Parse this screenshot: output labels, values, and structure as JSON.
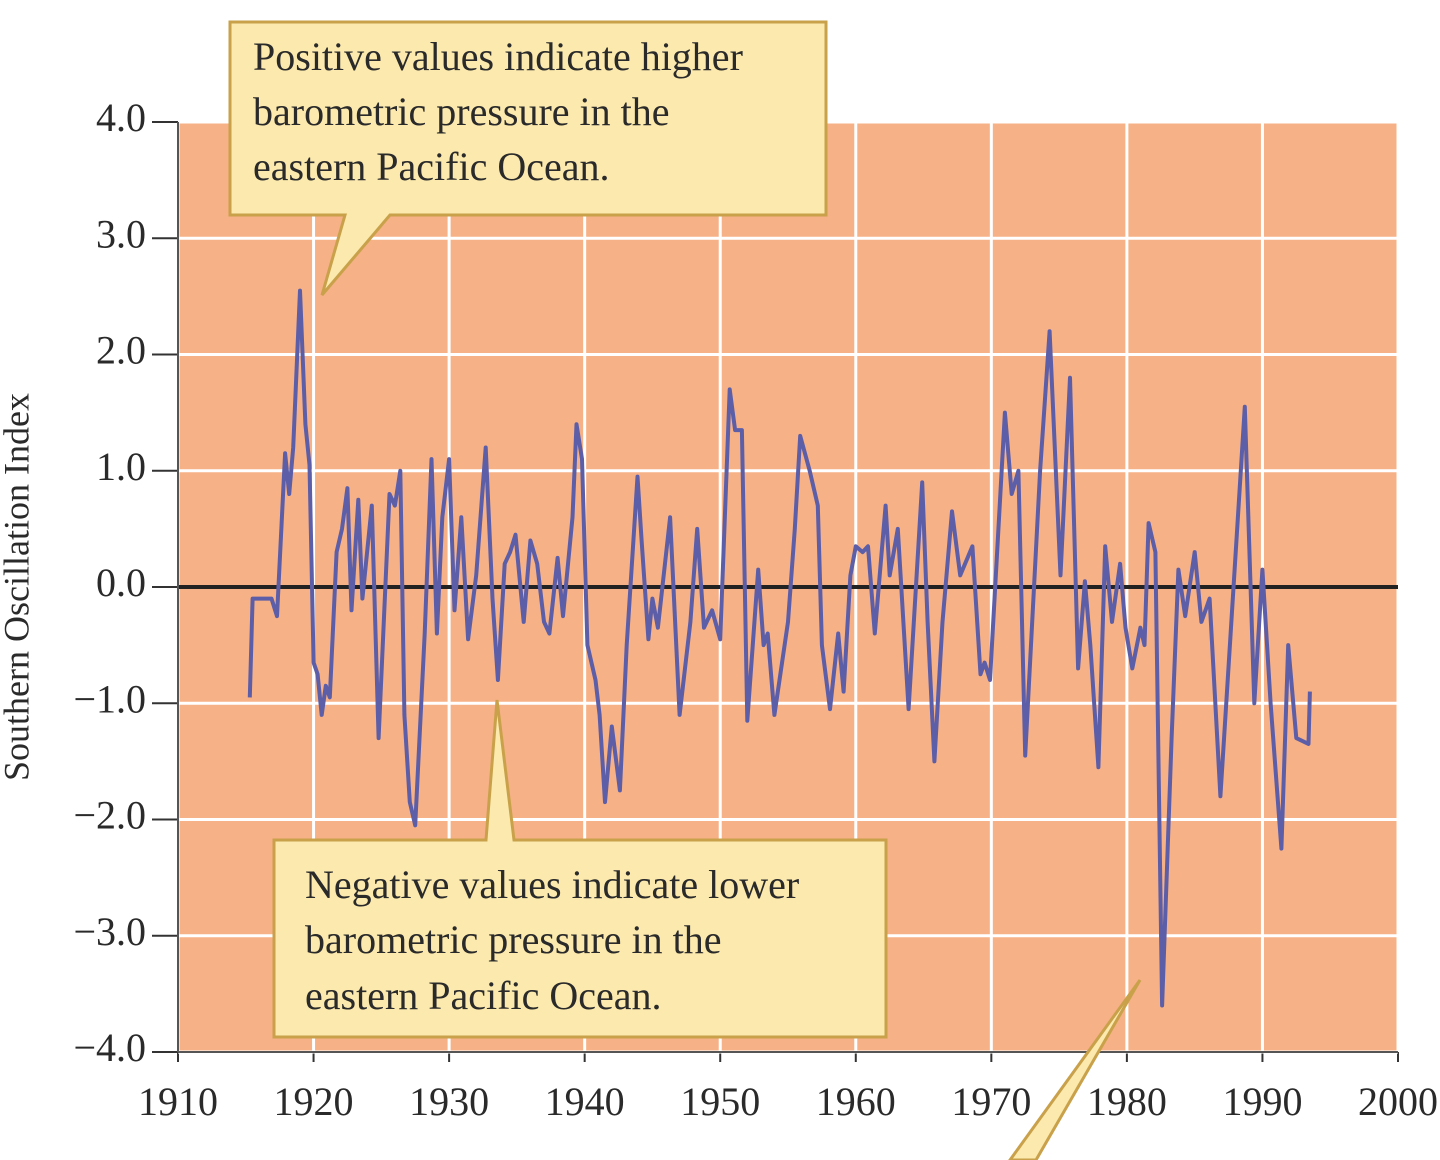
{
  "chart_data": {
    "type": "line",
    "y_label": "Southern Oscillation Index",
    "color": "#5c5ea8",
    "background": "#f6b186",
    "grid": true,
    "zero_line": true,
    "xlim": [
      1910,
      2000
    ],
    "xticks": [
      1910,
      1920,
      1930,
      1940,
      1950,
      1960,
      1970,
      1980,
      1990,
      2000
    ],
    "ylim": [
      -4,
      4
    ],
    "yticks": [
      {
        "value": 4,
        "label": "4.0"
      },
      {
        "value": 3,
        "label": "3.0"
      },
      {
        "value": 2,
        "label": "2.0"
      },
      {
        "value": 1,
        "label": "1.0"
      },
      {
        "value": 0,
        "label": "0.0"
      },
      {
        "value": -1,
        "label": "−1.0"
      },
      {
        "value": -2,
        "label": "−2.0"
      },
      {
        "value": -3,
        "label": "−3.0"
      },
      {
        "value": -4,
        "label": "−4.0"
      }
    ],
    "x": [
      1915.3,
      1915.5,
      1916.9,
      1917.3,
      1917.9,
      1918.2,
      1918.5,
      1919.0,
      1919.4,
      1919.7,
      1920.0,
      1920.3,
      1920.6,
      1920.9,
      1921.2,
      1921.7,
      1922.1,
      1922.5,
      1922.8,
      1923.3,
      1923.6,
      1924.3,
      1924.8,
      1925.6,
      1926.0,
      1926.4,
      1926.7,
      1927.1,
      1927.5,
      1928.2,
      1928.7,
      1929.1,
      1929.5,
      1930.0,
      1930.4,
      1930.9,
      1931.4,
      1932.0,
      1932.7,
      1933.2,
      1933.6,
      1934.1,
      1934.5,
      1934.9,
      1935.5,
      1936.0,
      1936.5,
      1937.0,
      1937.4,
      1938.0,
      1938.4,
      1939.1,
      1939.4,
      1939.8,
      1940.2,
      1940.8,
      1941.1,
      1941.5,
      1942.0,
      1942.6,
      1943.1,
      1943.9,
      1944.2,
      1944.7,
      1945.0,
      1945.4,
      1946.3,
      1947.0,
      1947.8,
      1948.3,
      1948.8,
      1949.4,
      1950.0,
      1950.7,
      1951.1,
      1951.6,
      1952.0,
      1952.8,
      1953.2,
      1953.5,
      1954.0,
      1955.0,
      1955.5,
      1955.9,
      1956.6,
      1957.2,
      1957.5,
      1958.1,
      1958.7,
      1959.1,
      1959.6,
      1960.0,
      1960.5,
      1960.9,
      1961.4,
      1962.2,
      1962.5,
      1963.1,
      1963.9,
      1964.9,
      1965.3,
      1965.8,
      1966.4,
      1967.1,
      1967.7,
      1968.6,
      1969.2,
      1969.5,
      1969.9,
      1971.0,
      1971.5,
      1972.0,
      1972.5,
      1973.6,
      1974.3,
      1975.1,
      1975.8,
      1976.4,
      1976.9,
      1977.3,
      1977.9,
      1978.4,
      1978.9,
      1979.5,
      1979.9,
      1980.4,
      1981.0,
      1981.3,
      1981.6,
      1982.1,
      1982.6,
      1983.3,
      1983.8,
      1984.3,
      1985.0,
      1985.5,
      1986.1,
      1986.9,
      1987.6,
      1988.7,
      1989.4,
      1990.0,
      1990.6,
      1991.4,
      1991.9,
      1992.5,
      1993.4,
      1993.5
    ],
    "values": [
      -0.95,
      -0.1,
      -0.1,
      -0.25,
      1.15,
      0.8,
      1.2,
      2.55,
      1.4,
      1.05,
      -0.65,
      -0.75,
      -1.1,
      -0.85,
      -0.95,
      0.3,
      0.5,
      0.85,
      -0.2,
      0.75,
      -0.1,
      0.7,
      -1.3,
      0.8,
      0.7,
      1.0,
      -1.1,
      -1.85,
      -2.05,
      -0.4,
      1.1,
      -0.4,
      0.6,
      1.1,
      -0.2,
      0.6,
      -0.45,
      0.1,
      1.2,
      -0.1,
      -0.8,
      0.2,
      0.3,
      0.45,
      -0.3,
      0.4,
      0.2,
      -0.3,
      -0.4,
      0.25,
      -0.25,
      0.6,
      1.4,
      1.1,
      -0.5,
      -0.8,
      -1.1,
      -1.85,
      -1.2,
      -1.75,
      -0.5,
      0.95,
      0.4,
      -0.45,
      -0.1,
      -0.35,
      0.6,
      -1.1,
      -0.3,
      0.5,
      -0.35,
      -0.2,
      -0.45,
      1.7,
      1.35,
      1.35,
      -1.15,
      0.15,
      -0.5,
      -0.4,
      -1.1,
      -0.3,
      0.5,
      1.3,
      1.0,
      0.7,
      -0.5,
      -1.05,
      -0.4,
      -0.9,
      0.1,
      0.35,
      0.3,
      0.35,
      -0.4,
      0.7,
      0.1,
      0.5,
      -1.05,
      0.9,
      -0.3,
      -1.5,
      -0.3,
      0.65,
      0.1,
      0.35,
      -0.75,
      -0.65,
      -0.8,
      1.5,
      0.8,
      1.0,
      -1.45,
      1.0,
      2.2,
      0.1,
      1.8,
      -0.7,
      0.05,
      -0.5,
      -1.55,
      0.35,
      -0.3,
      0.2,
      -0.35,
      -0.7,
      -0.35,
      -0.5,
      0.55,
      0.3,
      -3.6,
      -1.3,
      0.15,
      -0.25,
      0.3,
      -0.3,
      -0.1,
      -1.8,
      -0.5,
      1.55,
      -1.0,
      0.15,
      -1.0,
      -2.25,
      -0.5,
      -1.3,
      -1.35,
      -0.9
    ],
    "annotations": [
      {
        "lines": [
          "Positive values indicate higher",
          "barometric pressure in the",
          "eastern Pacific Ocean."
        ]
      },
      {
        "lines": [
          "Negative values indicate lower",
          "barometric pressure in the",
          "eastern Pacific Ocean."
        ]
      }
    ]
  }
}
